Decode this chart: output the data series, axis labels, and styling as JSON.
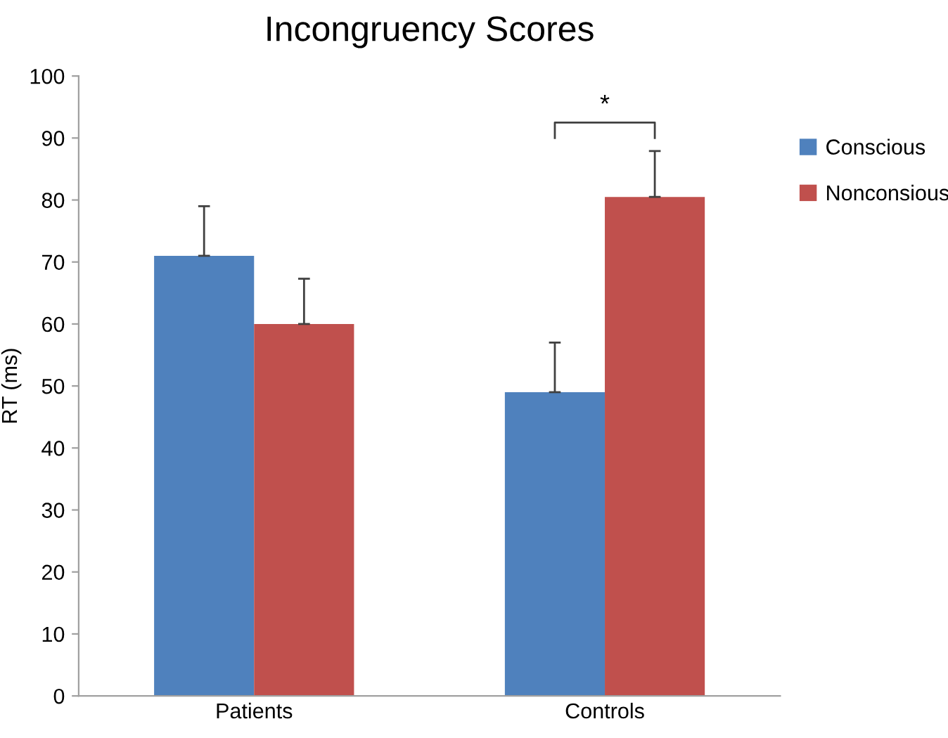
{
  "chart_data": {
    "type": "bar",
    "title": "Incongruency Scores",
    "ylabel": "RT (ms)",
    "categories": [
      "Patients",
      "Controls"
    ],
    "series": [
      {
        "name": "Conscious",
        "color": "#4f81bd",
        "values": [
          71,
          49
        ],
        "errors": [
          [
            71,
            79
          ],
          [
            49,
            57
          ]
        ]
      },
      {
        "name": "Nonconsious",
        "color": "#c0504d",
        "values": [
          60,
          80.5
        ],
        "errors": [
          [
            60,
            67.3
          ],
          [
            80.5,
            87.9
          ]
        ]
      }
    ],
    "ylim": [
      0,
      100
    ],
    "yticks": [
      0,
      10,
      20,
      30,
      40,
      50,
      60,
      70,
      80,
      90,
      100
    ],
    "annotations": [
      "*"
    ],
    "legend": "right",
    "grid": false
  }
}
